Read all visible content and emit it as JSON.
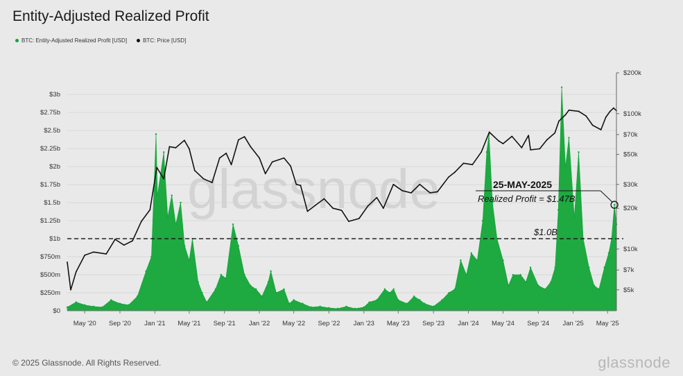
{
  "title": "Entity-Adjusted Realized Profit",
  "legend": [
    {
      "label": "BTC: Entity-Adjusted Realized Profit [USD]",
      "color": "#13a538"
    },
    {
      "label": "BTC: Price [USD]",
      "color": "#111111"
    }
  ],
  "footer": {
    "copyright": "© 2025 Glassnode. All Rights Reserved.",
    "brand": "glassnode",
    "watermark": "glassnode"
  },
  "chart_data": {
    "type": "area",
    "x_range": [
      "2020-03-01",
      "2025-06-01"
    ],
    "x_ticks": [
      "May '20",
      "Sep '20",
      "Jan '21",
      "May '21",
      "Sep '21",
      "Jan '22",
      "May '22",
      "Sep '22",
      "Jan '23",
      "May '23",
      "Sep '23",
      "Jan '24",
      "May '24",
      "Sep '24",
      "Jan '25",
      "May '25"
    ],
    "y_left": {
      "label": "",
      "range": [
        0,
        3.3
      ],
      "unit": "billion USD",
      "ticks": [
        "$0",
        "$250m",
        "$500m",
        "$750m",
        "$1b",
        "$1.25b",
        "$1.5b",
        "$1.75b",
        "$2b",
        "$2.25b",
        "$2.5b",
        "$2.75b",
        "$3b"
      ],
      "tick_values": [
        0,
        0.25,
        0.5,
        0.75,
        1,
        1.25,
        1.5,
        1.75,
        2,
        2.25,
        2.5,
        2.75,
        3
      ]
    },
    "y_right": {
      "label": "",
      "scale": "log",
      "range": [
        3500,
        200000
      ],
      "ticks": [
        "$5k",
        "$7k",
        "$10k",
        "$20k",
        "$30k",
        "$50k",
        "$70k",
        "$100k",
        "$200k"
      ],
      "tick_values": [
        5000,
        7000,
        10000,
        20000,
        30000,
        50000,
        70000,
        100000,
        200000
      ]
    },
    "series": [
      {
        "name": "BTC: Entity-Adjusted Realized Profit [USD]",
        "axis": "left",
        "color": "#13a538",
        "x": [
          "2020-03-01",
          "2020-04-01",
          "2020-05-01",
          "2020-06-01",
          "2020-07-01",
          "2020-08-01",
          "2020-09-01",
          "2020-10-01",
          "2020-11-01",
          "2020-12-01",
          "2020-12-20",
          "2021-01-05",
          "2021-01-10",
          "2021-02-01",
          "2021-02-15",
          "2021-03-01",
          "2021-03-15",
          "2021-04-01",
          "2021-04-15",
          "2021-05-01",
          "2021-05-12",
          "2021-06-01",
          "2021-06-15",
          "2021-07-01",
          "2021-08-01",
          "2021-08-20",
          "2021-09-06",
          "2021-10-01",
          "2021-10-20",
          "2021-11-10",
          "2021-12-01",
          "2021-12-20",
          "2022-01-10",
          "2022-02-01",
          "2022-02-10",
          "2022-03-01",
          "2022-03-28",
          "2022-04-15",
          "2022-05-01",
          "2022-06-01",
          "2022-07-01",
          "2022-08-01",
          "2022-09-01",
          "2022-10-01",
          "2022-11-01",
          "2022-12-01",
          "2023-01-01",
          "2023-01-20",
          "2023-02-15",
          "2023-03-15",
          "2023-04-01",
          "2023-04-15",
          "2023-05-01",
          "2023-06-01",
          "2023-06-25",
          "2023-07-15",
          "2023-08-01",
          "2023-09-01",
          "2023-10-01",
          "2023-10-25",
          "2023-11-15",
          "2023-12-05",
          "2023-12-25",
          "2024-01-11",
          "2024-02-01",
          "2024-02-20",
          "2024-03-05",
          "2024-03-13",
          "2024-03-25",
          "2024-04-10",
          "2024-05-01",
          "2024-05-20",
          "2024-06-05",
          "2024-07-01",
          "2024-07-20",
          "2024-08-05",
          "2024-09-01",
          "2024-09-25",
          "2024-10-15",
          "2024-10-30",
          "2024-11-10",
          "2024-11-22",
          "2024-12-05",
          "2024-12-17",
          "2025-01-05",
          "2025-01-20",
          "2025-02-05",
          "2025-02-25",
          "2025-03-15",
          "2025-04-01",
          "2025-04-20",
          "2025-05-05",
          "2025-05-15",
          "2025-05-25",
          "2025-06-01"
        ],
        "values": [
          0.05,
          0.12,
          0.08,
          0.06,
          0.05,
          0.15,
          0.1,
          0.08,
          0.2,
          0.55,
          0.75,
          2.45,
          1.6,
          2.2,
          1.3,
          1.6,
          1.2,
          1.5,
          0.9,
          0.7,
          1.0,
          0.4,
          0.25,
          0.12,
          0.3,
          0.5,
          0.45,
          1.2,
          0.9,
          0.5,
          0.35,
          0.3,
          0.2,
          0.4,
          0.55,
          0.25,
          0.3,
          0.1,
          0.15,
          0.1,
          0.05,
          0.06,
          0.04,
          0.03,
          0.06,
          0.03,
          0.05,
          0.12,
          0.15,
          0.3,
          0.25,
          0.3,
          0.15,
          0.1,
          0.2,
          0.15,
          0.1,
          0.06,
          0.15,
          0.25,
          0.3,
          0.7,
          0.5,
          0.8,
          0.7,
          1.25,
          2.2,
          2.45,
          1.5,
          1.0,
          0.7,
          0.35,
          0.5,
          0.5,
          0.4,
          0.6,
          0.35,
          0.3,
          0.4,
          0.6,
          1.4,
          3.1,
          2.0,
          2.4,
          1.3,
          2.2,
          1.0,
          0.6,
          0.35,
          0.3,
          0.6,
          0.8,
          1.0,
          1.47,
          1.2
        ]
      },
      {
        "name": "BTC: Price [USD]",
        "axis": "right",
        "color": "#111111",
        "x": [
          "2020-03-01",
          "2020-03-13",
          "2020-04-01",
          "2020-05-01",
          "2020-06-01",
          "2020-07-15",
          "2020-08-15",
          "2020-09-15",
          "2020-10-15",
          "2020-11-15",
          "2020-12-15",
          "2021-01-08",
          "2021-02-01",
          "2021-02-21",
          "2021-03-15",
          "2021-04-14",
          "2021-05-01",
          "2021-05-20",
          "2021-06-20",
          "2021-07-20",
          "2021-08-15",
          "2021-09-07",
          "2021-09-25",
          "2021-10-20",
          "2021-11-10",
          "2021-12-01",
          "2022-01-01",
          "2022-01-22",
          "2022-02-15",
          "2022-03-28",
          "2022-04-20",
          "2022-05-10",
          "2022-05-25",
          "2022-06-18",
          "2022-07-15",
          "2022-08-15",
          "2022-09-15",
          "2022-10-15",
          "2022-11-09",
          "2022-12-15",
          "2023-01-15",
          "2023-02-15",
          "2023-03-10",
          "2023-04-14",
          "2023-05-15",
          "2023-06-15",
          "2023-07-15",
          "2023-08-20",
          "2023-09-15",
          "2023-10-24",
          "2023-11-15",
          "2023-12-15",
          "2024-01-15",
          "2024-02-15",
          "2024-03-14",
          "2024-04-15",
          "2024-05-01",
          "2024-06-01",
          "2024-07-05",
          "2024-07-29",
          "2024-08-05",
          "2024-09-06",
          "2024-10-01",
          "2024-10-29",
          "2024-11-12",
          "2024-12-05",
          "2024-12-17",
          "2025-01-20",
          "2025-02-15",
          "2025-03-10",
          "2025-04-08",
          "2025-04-25",
          "2025-05-10",
          "2025-05-22",
          "2025-06-01"
        ],
        "values": [
          8000,
          5000,
          6800,
          9000,
          9500,
          9200,
          11800,
          10700,
          11500,
          16000,
          19500,
          40000,
          33000,
          57000,
          56000,
          63500,
          55000,
          38000,
          33000,
          31000,
          47000,
          51000,
          42000,
          64000,
          67500,
          57000,
          47000,
          36000,
          44000,
          47000,
          41000,
          30000,
          29500,
          19000,
          21000,
          23500,
          20000,
          19300,
          16000,
          16800,
          20800,
          24000,
          20000,
          30000,
          27000,
          26000,
          30000,
          26000,
          26500,
          34000,
          37000,
          43000,
          42000,
          52000,
          73000,
          63000,
          60000,
          68000,
          56000,
          69000,
          54000,
          55000,
          64000,
          72000,
          88000,
          98000,
          106000,
          104000,
          96000,
          82000,
          76000,
          94000,
          104000,
          110000,
          105000
        ]
      }
    ],
    "annotations": [
      {
        "type": "callout",
        "date_label": "25-MAY-2025",
        "text": "Realized Profit = $1.47B",
        "x": "2025-05-25",
        "y": 1.47
      },
      {
        "type": "threshold",
        "text": "$1.0B",
        "y": 1.0,
        "style": "dashed"
      }
    ],
    "grid": {
      "horizontal": true,
      "vertical": false
    }
  }
}
